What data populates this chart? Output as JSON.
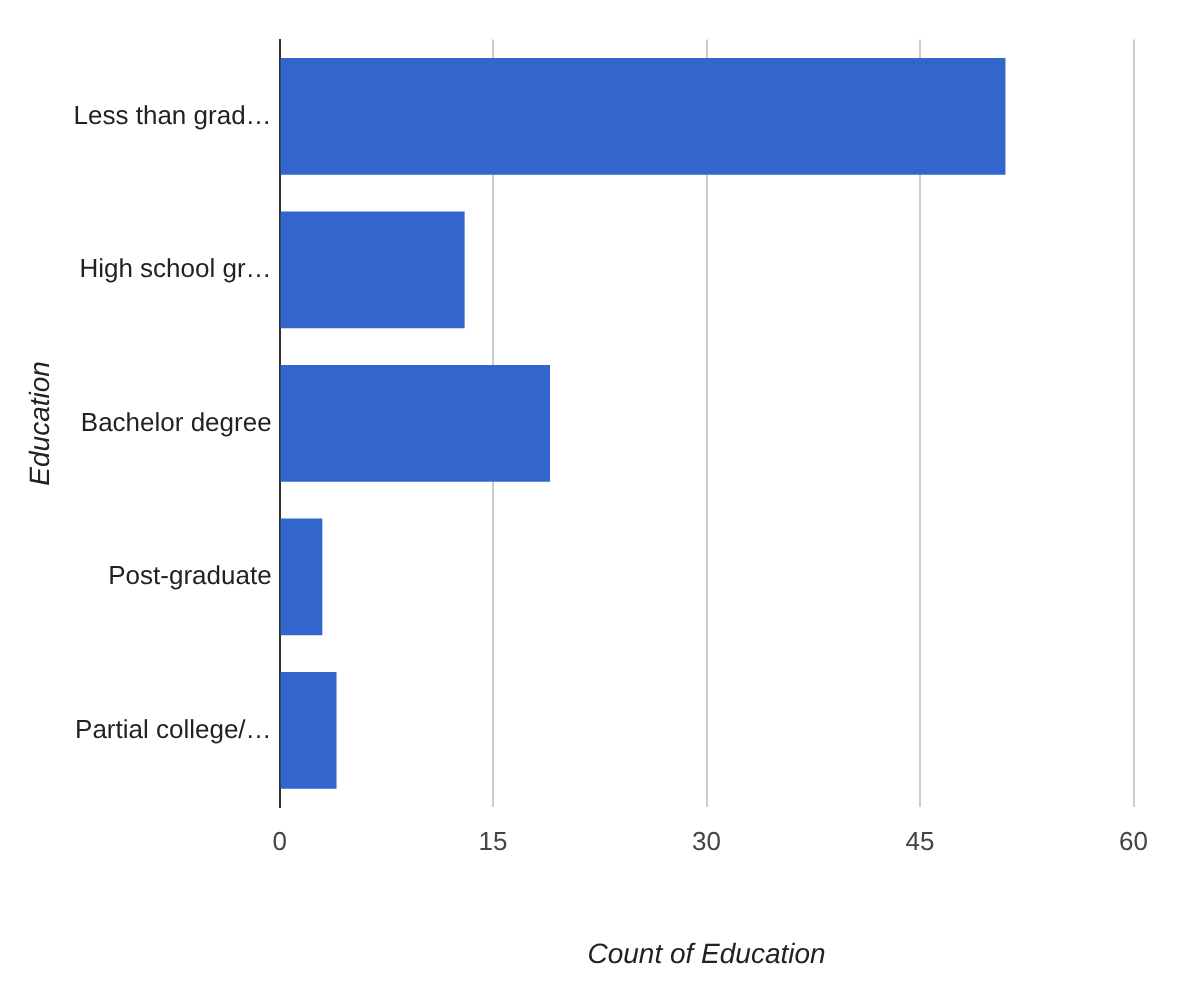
{
  "chart_data": {
    "type": "bar",
    "orientation": "horizontal",
    "xlabel": "Count of Education",
    "ylabel": "Education",
    "categories": [
      "Less than grad…",
      "High school gr…",
      "Bachelor degree",
      "Post-graduate",
      "Partial college/…"
    ],
    "values": [
      51,
      13,
      19,
      3,
      4
    ],
    "color": "#3366cc",
    "xlim": [
      0,
      60
    ],
    "xticks": [
      0,
      15,
      30,
      45,
      60
    ],
    "grid": "x",
    "legend": false
  }
}
